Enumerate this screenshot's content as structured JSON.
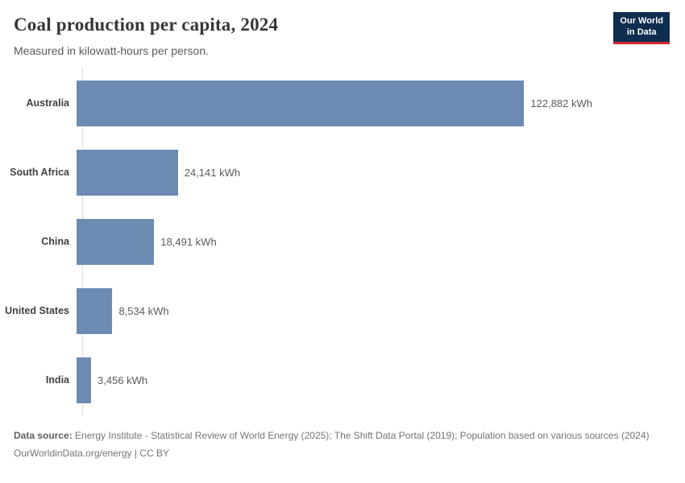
{
  "header": {
    "title": "Coal production per capita, 2024",
    "subtitle": "Measured in kilowatt-hours per person.",
    "logo": {
      "line1": "Our World",
      "line2": "in Data"
    }
  },
  "chart_data": {
    "type": "bar",
    "orientation": "horizontal",
    "title": "Coal production per capita, 2024",
    "unit": "kWh",
    "categories": [
      "Australia",
      "South Africa",
      "China",
      "United States",
      "India"
    ],
    "values": [
      122882,
      24141,
      18491,
      8534,
      3456
    ],
    "value_labels": [
      "122,882 kWh",
      "24,141 kWh",
      "18,491 kWh",
      "8,534 kWh",
      "3,456 kWh"
    ],
    "xlim": [
      0,
      122882
    ],
    "grid": false,
    "legend": "none",
    "bar_color": "#6d8ab2"
  },
  "colors": {
    "bar": "#6d8ab2",
    "logo_bg": "#0f2e4f",
    "logo_accent": "#d42b2f",
    "axis": "#dcdcdc",
    "title_text": "#373737",
    "subtitle_text": "#5b5b5b",
    "label_text": "#404040",
    "value_text": "#5b5b5b",
    "footer_text": "#757575"
  },
  "footer": {
    "data_source_label": "Data source:",
    "data_source_text": " Energy Institute - Statistical Review of World Energy (2025); The Shift Data Portal (2019); Population based on various sources (2024)",
    "license_line": "OurWorldinData.org/energy | CC BY"
  }
}
